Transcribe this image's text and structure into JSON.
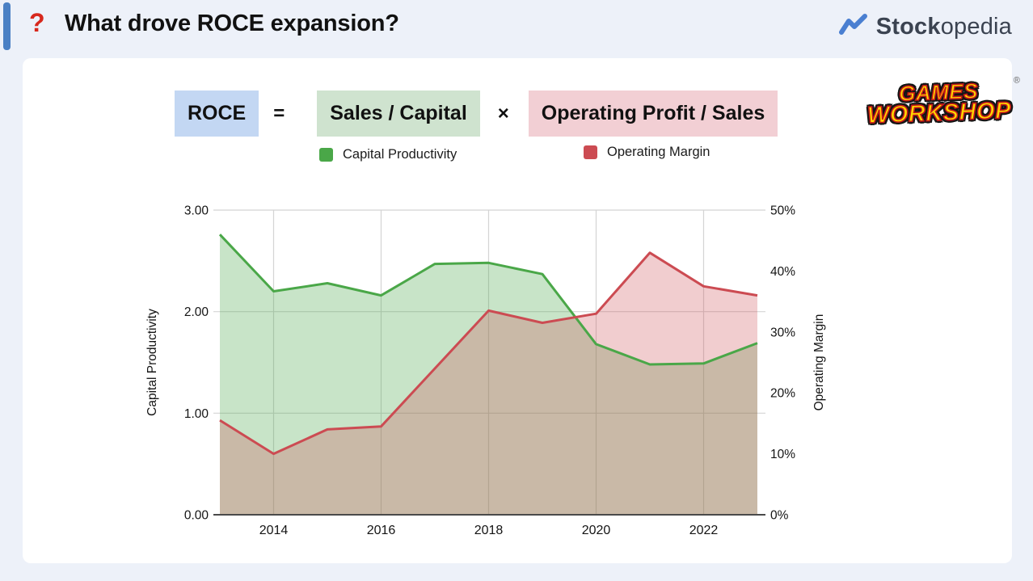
{
  "header": {
    "question_mark": "?",
    "title": "What drove ROCE expansion?",
    "brand": {
      "name_bold": "Stock",
      "name_light": "opedia"
    }
  },
  "formula": {
    "roce": "ROCE",
    "equals": "=",
    "capital_turn": "Sales / Capital",
    "times": "×",
    "margin": "Operating Profit / Sales"
  },
  "legend": [
    {
      "label": "Capital Productivity",
      "color": "#4aa748"
    },
    {
      "label": "Operating Margin",
      "color": "#cc4b52"
    }
  ],
  "company_logo": {
    "line1": "GAMES",
    "line2": "WORKSHOP",
    "registered": "®"
  },
  "chart_data": {
    "type": "area",
    "x": [
      2013,
      2014,
      2015,
      2016,
      2017,
      2018,
      2019,
      2020,
      2021,
      2022,
      2023
    ],
    "series": [
      {
        "name": "Capital Productivity",
        "axis": "left",
        "color": "#4aa748",
        "fill_opacity": 0.3,
        "values": [
          2.76,
          2.2,
          2.28,
          2.16,
          2.47,
          2.48,
          2.37,
          1.68,
          1.48,
          1.49,
          1.69
        ]
      },
      {
        "name": "Operating Margin",
        "axis": "right",
        "color": "#cc4b52",
        "fill_opacity": 0.28,
        "values": [
          15.5,
          10,
          14,
          14.5,
          24,
          33.5,
          31.5,
          33,
          43,
          37.5,
          36
        ]
      }
    ],
    "left_axis": {
      "title": "Capital Productivity",
      "min": 0,
      "max": 3,
      "ticks": [
        "0.00",
        "1.00",
        "2.00",
        "3.00"
      ]
    },
    "right_axis": {
      "title": "Operating Margin",
      "min": 0,
      "max": 50,
      "ticks": [
        "0%",
        "10%",
        "20%",
        "30%",
        "40%",
        "50%"
      ]
    },
    "x_ticks": [
      "2014",
      "2016",
      "2018",
      "2020",
      "2022"
    ],
    "grid": true,
    "legend_position": "top"
  },
  "colors": {
    "page_bg": "#edf1f9",
    "card_bg": "#ffffff",
    "accent_bar": "#4a80c4",
    "question_red": "#d7281d",
    "title_text": "#111111",
    "roce_highlight": "#c3d7f3",
    "capital_highlight": "#cfe3cf",
    "margin_highlight": "#f2cfd4",
    "green": "#4aa748",
    "red": "#cc4b52",
    "brand_blue": "#4a7fd1",
    "brand_text": "#3b4351",
    "gw_yellow": "#ffd900",
    "gw_red": "#c41818",
    "grid_line": "#d4d4d4",
    "axis_line": "#4a4a4a"
  }
}
